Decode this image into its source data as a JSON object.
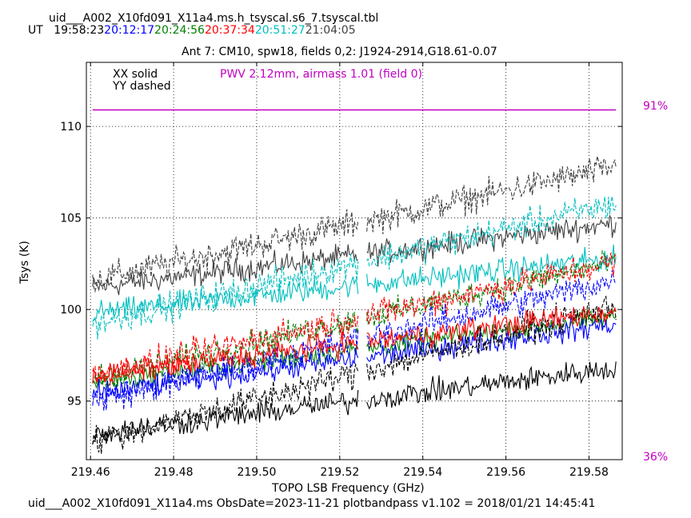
{
  "header": {
    "table_name": "uid___A002_X10fd091_X11a4.ms.h_tsyscal.s6_7.tsyscal.tbl",
    "ut_label": "UT",
    "times": [
      {
        "text": "19:58:23",
        "color": "#000000"
      },
      {
        "text": "20:12:17",
        "color": "#0000ff"
      },
      {
        "text": "20:24:56",
        "color": "#008000"
      },
      {
        "text": "20:37:34",
        "color": "#ff0000"
      },
      {
        "text": "20:51:27",
        "color": "#00bfbf"
      },
      {
        "text": "21:04:05",
        "color": "#404040"
      }
    ]
  },
  "footer": {
    "text": "uid___A002_X10fd091_X11a4.ms  ObsDate=2023-11-21   plotbandpass v1.102 = 2018/01/21 14:45:41"
  },
  "chart_data": {
    "type": "line",
    "title": "Ant 7: CM10,  spw18,  fields 0,2: J1924-2914,G18.61-0.07",
    "xlabel": "TOPO LSB Frequency (GHz)",
    "ylabel": "Tsys (K)",
    "xlim": [
      219.459,
      219.588
    ],
    "ylim": [
      91.8,
      113.5
    ],
    "xticks": [
      219.46,
      219.48,
      219.5,
      219.52,
      219.54,
      219.56,
      219.58
    ],
    "xtick_labels": [
      "219.46",
      "219.48",
      "219.50",
      "219.52",
      "219.54",
      "219.56",
      "219.58"
    ],
    "yticks": [
      95,
      100,
      105,
      110
    ],
    "ytick_labels": [
      "95",
      "100",
      "105",
      "110"
    ],
    "grid": true,
    "legend_notes": [
      "XX solid",
      "YY dashed"
    ],
    "pwv_annotation": {
      "text": "PWV 2.12mm, airmass 1.01 (field 0)",
      "color": "#c000c0"
    },
    "atm_transmission": {
      "color": "#c000c0",
      "percent_labels": [
        "91%",
        "36%"
      ],
      "line_tsys_level": 110.9
    },
    "channel_range": {
      "start": 219.4605,
      "end": 219.5865
    },
    "gap_region": [
      219.5245,
      219.5265
    ],
    "series": [
      {
        "color": "#404040",
        "pol": "XX",
        "start": 101.2,
        "end": 104.7,
        "noise": 0.45
      },
      {
        "color": "#404040",
        "pol": "YY",
        "start": 101.6,
        "end": 107.8,
        "noise": 0.55
      },
      {
        "color": "#00bfbf",
        "pol": "XX",
        "start": 99.8,
        "end": 102.8,
        "noise": 0.45
      },
      {
        "color": "#00bfbf",
        "pol": "YY",
        "start": 99.2,
        "end": 105.8,
        "noise": 0.55
      },
      {
        "color": "#008000",
        "pol": "XX",
        "start": 96.0,
        "end": 99.6,
        "noise": 0.4
      },
      {
        "color": "#008000",
        "pol": "YY",
        "start": 96.2,
        "end": 102.6,
        "noise": 0.5
      },
      {
        "color": "#0000ff",
        "pol": "XX",
        "start": 95.4,
        "end": 99.2,
        "noise": 0.45
      },
      {
        "color": "#0000ff",
        "pol": "YY",
        "start": 95.0,
        "end": 101.6,
        "noise": 0.55
      },
      {
        "color": "#000000",
        "pol": "XX",
        "start": 93.2,
        "end": 96.8,
        "noise": 0.45
      },
      {
        "color": "#000000",
        "pol": "YY",
        "start": 92.8,
        "end": 100.2,
        "noise": 0.55
      },
      {
        "color": "#ff0000",
        "pol": "XX",
        "start": 96.4,
        "end": 99.9,
        "noise": 0.45
      },
      {
        "color": "#ff0000",
        "pol": "YY",
        "start": 96.4,
        "end": 102.6,
        "noise": 0.55
      }
    ]
  }
}
